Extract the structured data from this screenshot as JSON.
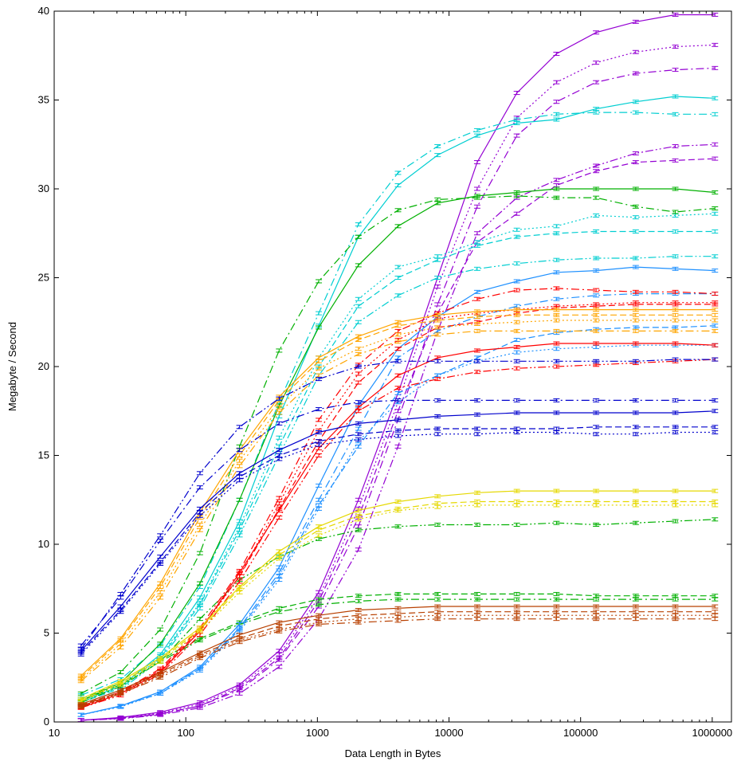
{
  "chart_data": {
    "type": "line",
    "xlabel": "Data Length in Bytes",
    "ylabel": "Megabyte / Second",
    "xscale": "log",
    "xlim": [
      10,
      1400000
    ],
    "ylim": [
      0,
      40
    ],
    "xticks": [
      {
        "value": 10,
        "label": "10"
      },
      {
        "value": 100,
        "label": "100"
      },
      {
        "value": 1000,
        "label": "1000"
      },
      {
        "value": 10000,
        "label": "10000"
      },
      {
        "value": 100000,
        "label": "100000"
      },
      {
        "value": 1000000,
        "label": "1000000"
      }
    ],
    "yticks": [
      {
        "value": 0,
        "label": "0"
      },
      {
        "value": 5,
        "label": "5"
      },
      {
        "value": 10,
        "label": "10"
      },
      {
        "value": 15,
        "label": "15"
      },
      {
        "value": 20,
        "label": "20"
      },
      {
        "value": 25,
        "label": "25"
      },
      {
        "value": 30,
        "label": "30"
      },
      {
        "value": 35,
        "label": "35"
      },
      {
        "value": 40,
        "label": "40"
      }
    ],
    "grid": false,
    "legend": "none",
    "x": [
      16,
      32,
      64,
      128,
      256,
      512,
      1024,
      2048,
      4096,
      8192,
      16384,
      32768,
      65536,
      131072,
      262144,
      524288,
      1048576
    ],
    "series": [
      {
        "color": "#9400d3",
        "dash": "solid",
        "values": [
          0.1,
          0.25,
          0.55,
          1.1,
          2.1,
          4.0,
          7.3,
          12.5,
          18.5,
          25.0,
          31.5,
          35.4,
          37.6,
          38.8,
          39.4,
          39.8,
          39.8
        ]
      },
      {
        "color": "#9400d3",
        "dash": "dotted",
        "values": [
          0.1,
          0.22,
          0.5,
          1.0,
          2.0,
          3.8,
          7.0,
          12.0,
          18.0,
          24.5,
          30.0,
          34.0,
          36.0,
          37.1,
          37.7,
          38.0,
          38.1
        ]
      },
      {
        "color": "#9400d3",
        "dash": "dashdot",
        "values": [
          0.1,
          0.2,
          0.45,
          0.9,
          1.8,
          3.5,
          6.5,
          11.0,
          17.0,
          23.5,
          29.0,
          33.0,
          34.9,
          36.0,
          36.5,
          36.7,
          36.8
        ]
      },
      {
        "color": "#9400d3",
        "dash": "dashed",
        "values": [
          0.1,
          0.2,
          0.45,
          0.9,
          1.9,
          3.6,
          6.8,
          11.5,
          17.5,
          23.0,
          27.0,
          28.6,
          30.2,
          31.0,
          31.5,
          31.6,
          31.7
        ]
      },
      {
        "color": "#9400d3",
        "dash": "dashdotdot",
        "values": [
          0.1,
          0.18,
          0.4,
          0.8,
          1.6,
          3.1,
          5.8,
          9.7,
          15.5,
          22.0,
          27.5,
          29.5,
          30.5,
          31.3,
          32.0,
          32.4,
          32.5
        ]
      },
      {
        "color": "#00ced1",
        "dash": "solid",
        "values": [
          1.2,
          2.0,
          3.8,
          7.0,
          11.3,
          17.2,
          22.3,
          27.3,
          30.2,
          31.9,
          33.0,
          33.7,
          33.9,
          34.5,
          34.9,
          35.2,
          35.1
        ]
      },
      {
        "color": "#00ced1",
        "dash": "dashdot",
        "values": [
          1.5,
          2.4,
          4.3,
          7.6,
          12.5,
          18.0,
          23.0,
          28.0,
          30.9,
          32.4,
          33.3,
          33.9,
          34.2,
          34.3,
          34.3,
          34.2,
          34.2
        ]
      },
      {
        "color": "#00ced1",
        "dash": "dotted",
        "values": [
          1.1,
          2.0,
          3.7,
          6.7,
          11.0,
          16.0,
          20.5,
          23.8,
          25.6,
          26.2,
          27.0,
          27.7,
          27.9,
          28.5,
          28.4,
          28.5,
          28.6
        ]
      },
      {
        "color": "#00ced1",
        "dash": "dashed",
        "values": [
          1.1,
          1.9,
          3.6,
          6.6,
          10.8,
          15.5,
          20.0,
          23.4,
          25.0,
          26.0,
          26.8,
          27.3,
          27.5,
          27.6,
          27.6,
          27.6,
          27.6
        ]
      },
      {
        "color": "#00ced1",
        "dash": "dashdotdot",
        "values": [
          1.0,
          1.8,
          3.5,
          6.4,
          10.5,
          15.0,
          19.5,
          22.5,
          24.0,
          25.0,
          25.5,
          25.8,
          26.0,
          26.1,
          26.1,
          26.2,
          26.2
        ]
      },
      {
        "color": "#00b000",
        "dash": "solid",
        "values": [
          1.2,
          2.2,
          4.4,
          7.8,
          12.5,
          17.8,
          22.2,
          25.7,
          27.9,
          29.2,
          29.6,
          29.8,
          30.0,
          30.0,
          30.0,
          30.0,
          29.8
        ]
      },
      {
        "color": "#00b000",
        "dash": "dashdot",
        "values": [
          1.6,
          2.8,
          5.2,
          9.5,
          15.5,
          20.9,
          24.8,
          27.3,
          28.8,
          29.4,
          29.5,
          29.6,
          29.5,
          29.5,
          29.0,
          28.7,
          28.9
        ]
      },
      {
        "color": "#00b000",
        "dash": "dashed",
        "values": [
          1.3,
          2.2,
          3.5,
          4.7,
          5.6,
          6.4,
          6.9,
          7.1,
          7.2,
          7.2,
          7.2,
          7.2,
          7.2,
          7.1,
          7.1,
          7.1,
          7.1
        ]
      },
      {
        "color": "#00b000",
        "dash": "dashdot",
        "values": [
          1.2,
          2.1,
          3.4,
          4.6,
          5.5,
          6.2,
          6.6,
          6.8,
          6.9,
          6.9,
          6.9,
          6.9,
          6.9,
          6.9,
          6.9,
          6.9,
          6.9
        ]
      },
      {
        "color": "#00b000",
        "dash": "dashdotdot",
        "values": [
          1.1,
          2.0,
          3.4,
          5.8,
          8.0,
          9.3,
          10.3,
          10.8,
          11.0,
          11.1,
          11.1,
          11.1,
          11.2,
          11.1,
          11.2,
          11.3,
          11.4
        ]
      },
      {
        "color": "#1e90ff",
        "dash": "solid",
        "values": [
          0.4,
          0.9,
          1.7,
          3.1,
          5.5,
          8.7,
          13.3,
          17.8,
          21.0,
          22.8,
          24.2,
          24.8,
          25.3,
          25.4,
          25.6,
          25.5,
          25.4
        ]
      },
      {
        "color": "#1e90ff",
        "dash": "dashdot",
        "values": [
          0.4,
          0.9,
          1.7,
          3.0,
          5.3,
          8.4,
          12.5,
          16.5,
          20.5,
          22.0,
          22.8,
          23.4,
          23.8,
          24.0,
          24.1,
          24.1,
          24.1
        ]
      },
      {
        "color": "#1e90ff",
        "dash": "dashed",
        "values": [
          0.4,
          0.9,
          1.6,
          3.0,
          5.2,
          8.2,
          12.2,
          15.5,
          18.5,
          19.5,
          20.5,
          21.5,
          21.9,
          22.1,
          22.2,
          22.2,
          22.3
        ]
      },
      {
        "color": "#1e90ff",
        "dash": "dotted",
        "values": [
          0.4,
          0.85,
          1.6,
          2.9,
          5.1,
          8.0,
          12.0,
          15.8,
          18.0,
          19.5,
          20.3,
          20.8,
          21.0,
          21.1,
          21.2,
          21.2,
          21.2
        ]
      },
      {
        "color": "#ff0000",
        "dash": "solid",
        "values": [
          0.8,
          1.6,
          2.8,
          5.1,
          8.4,
          11.9,
          15.4,
          17.7,
          19.5,
          20.5,
          20.9,
          21.1,
          21.3,
          21.3,
          21.3,
          21.3,
          21.2
        ]
      },
      {
        "color": "#ff0000",
        "dash": "dashed",
        "values": [
          0.9,
          1.7,
          2.9,
          5.2,
          8.2,
          12.0,
          15.8,
          19.1,
          21.0,
          22.2,
          22.5,
          23.0,
          23.3,
          23.4,
          23.5,
          23.5,
          23.5
        ]
      },
      {
        "color": "#ff0000",
        "dash": "dotted",
        "values": [
          0.85,
          1.65,
          2.85,
          5.1,
          8.2,
          12.3,
          16.4,
          19.6,
          21.5,
          22.7,
          23.0,
          23.2,
          23.4,
          23.5,
          23.6,
          23.6,
          23.6
        ]
      },
      {
        "color": "#ff0000",
        "dash": "dashdot",
        "values": [
          0.9,
          1.7,
          3.0,
          5.3,
          8.5,
          12.6,
          17.0,
          20.1,
          22.0,
          23.0,
          23.8,
          24.3,
          24.4,
          24.3,
          24.2,
          24.2,
          24.1
        ]
      },
      {
        "color": "#ff0000",
        "dash": "dashdotdot",
        "values": [
          0.8,
          1.5,
          2.7,
          4.9,
          7.9,
          11.5,
          15.0,
          17.5,
          18.8,
          19.3,
          19.7,
          19.9,
          20.0,
          20.1,
          20.2,
          20.3,
          20.4
        ]
      },
      {
        "color": "#ffa500",
        "dash": "solid",
        "values": [
          2.6,
          4.7,
          7.8,
          11.8,
          15.3,
          18.3,
          20.5,
          21.7,
          22.5,
          22.9,
          23.1,
          23.2,
          23.2,
          23.2,
          23.2,
          23.2,
          23.2
        ]
      },
      {
        "color": "#ffa500",
        "dash": "dashed",
        "values": [
          2.5,
          4.6,
          7.6,
          11.5,
          15.0,
          18.1,
          20.3,
          21.5,
          22.3,
          22.6,
          22.8,
          22.9,
          22.9,
          22.9,
          22.9,
          22.9,
          22.9
        ]
      },
      {
        "color": "#ffa500",
        "dash": "dotted",
        "values": [
          2.4,
          4.4,
          7.3,
          11.1,
          14.7,
          17.7,
          19.9,
          21.0,
          21.8,
          22.2,
          22.4,
          22.5,
          22.6,
          22.6,
          22.6,
          22.6,
          22.6
        ]
      },
      {
        "color": "#ffa500",
        "dash": "dashdot",
        "values": [
          2.3,
          4.2,
          7.0,
          10.8,
          14.4,
          17.4,
          19.5,
          20.7,
          21.4,
          21.8,
          22.0,
          22.0,
          22.0,
          22.0,
          22.0,
          22.0,
          22.0
        ]
      },
      {
        "color": "#0000cd",
        "dash": "solid",
        "values": [
          4.0,
          6.5,
          9.3,
          12.0,
          14.0,
          15.3,
          16.3,
          16.8,
          17.0,
          17.2,
          17.3,
          17.4,
          17.4,
          17.4,
          17.4,
          17.4,
          17.5
        ]
      },
      {
        "color": "#0000cd",
        "dash": "dashdot",
        "values": [
          4.3,
          7.0,
          10.2,
          13.2,
          15.3,
          16.8,
          17.6,
          18.0,
          18.1,
          18.1,
          18.1,
          18.1,
          18.1,
          18.1,
          18.1,
          18.1,
          18.1
        ]
      },
      {
        "color": "#0000cd",
        "dash": "dashdotdot",
        "values": [
          4.1,
          7.2,
          10.5,
          14.0,
          16.6,
          18.2,
          19.3,
          20.0,
          20.3,
          20.3,
          20.3,
          20.3,
          20.3,
          20.3,
          20.3,
          20.4,
          20.4
        ]
      },
      {
        "color": "#0000cd",
        "dash": "dashed",
        "values": [
          3.9,
          6.3,
          9.0,
          11.8,
          13.8,
          15.0,
          15.8,
          16.2,
          16.4,
          16.5,
          16.5,
          16.5,
          16.5,
          16.6,
          16.6,
          16.6,
          16.6
        ]
      },
      {
        "color": "#0000cd",
        "dash": "dotted",
        "values": [
          3.8,
          6.2,
          8.9,
          11.6,
          13.6,
          14.8,
          15.6,
          15.9,
          16.1,
          16.2,
          16.2,
          16.3,
          16.3,
          16.2,
          16.2,
          16.3,
          16.3
        ]
      },
      {
        "color": "#e5d800",
        "dash": "solid",
        "values": [
          1.3,
          2.3,
          3.6,
          5.3,
          7.6,
          9.6,
          11.0,
          11.9,
          12.4,
          12.7,
          12.9,
          13.0,
          13.0,
          13.0,
          13.0,
          13.0,
          13.0
        ]
      },
      {
        "color": "#e5d800",
        "dash": "dashed",
        "values": [
          1.2,
          2.2,
          3.5,
          5.2,
          7.5,
          9.4,
          10.8,
          11.6,
          12.0,
          12.3,
          12.4,
          12.4,
          12.4,
          12.4,
          12.4,
          12.4,
          12.4
        ]
      },
      {
        "color": "#e5d800",
        "dash": "dotted",
        "values": [
          1.15,
          2.1,
          3.4,
          5.1,
          7.3,
          9.2,
          10.5,
          11.4,
          11.9,
          12.1,
          12.2,
          12.2,
          12.2,
          12.2,
          12.2,
          12.2,
          12.2
        ]
      },
      {
        "color": "#b84000",
        "dash": "solid",
        "values": [
          1.0,
          1.8,
          2.8,
          3.9,
          4.9,
          5.6,
          6.0,
          6.3,
          6.4,
          6.5,
          6.5,
          6.5,
          6.5,
          6.5,
          6.5,
          6.5,
          6.5
        ]
      },
      {
        "color": "#b84000",
        "dash": "dashed",
        "values": [
          0.95,
          1.7,
          2.7,
          3.8,
          4.7,
          5.4,
          5.8,
          6.0,
          6.1,
          6.2,
          6.2,
          6.2,
          6.2,
          6.2,
          6.2,
          6.2,
          6.2
        ]
      },
      {
        "color": "#b84000",
        "dash": "dotted",
        "values": [
          0.9,
          1.65,
          2.6,
          3.7,
          4.6,
          5.2,
          5.6,
          5.8,
          5.9,
          6.0,
          6.0,
          6.0,
          6.0,
          6.0,
          6.0,
          6.0,
          6.0
        ]
      },
      {
        "color": "#b84000",
        "dash": "dashdot",
        "values": [
          0.85,
          1.6,
          2.5,
          3.6,
          4.5,
          5.1,
          5.5,
          5.6,
          5.7,
          5.8,
          5.8,
          5.8,
          5.8,
          5.8,
          5.8,
          5.8,
          5.8
        ]
      }
    ]
  }
}
